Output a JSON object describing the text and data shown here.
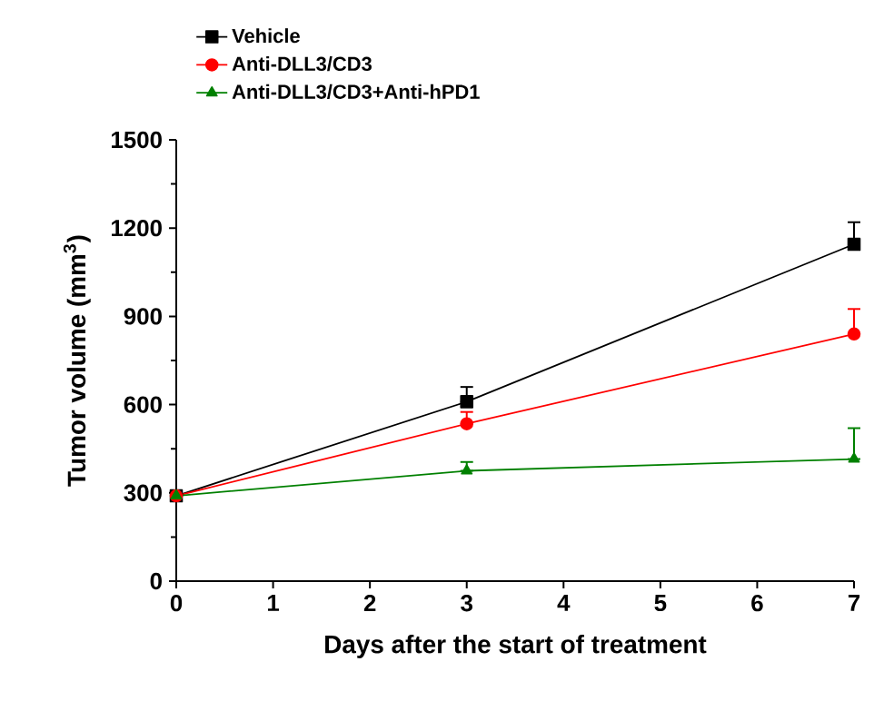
{
  "chart_data": {
    "type": "line",
    "xlabel": "Days after the start of treatment",
    "ylabel": "Tumor volume (mm$^{3}$)",
    "x": [
      0,
      3,
      7
    ],
    "xlim": [
      0,
      7
    ],
    "xticks": [
      0,
      1,
      2,
      3,
      4,
      5,
      6,
      7
    ],
    "ylim": [
      0,
      1500
    ],
    "yticks": [
      0,
      300,
      600,
      900,
      1200,
      1500
    ],
    "legend": "top left",
    "grid": false,
    "series": [
      {
        "name": "Vehicle",
        "color": "#000000",
        "marker": "square",
        "values": [
          290,
          610,
          1145
        ],
        "errors": [
          null,
          [
            610,
            660
          ],
          [
            1145,
            1220
          ]
        ]
      },
      {
        "name": "Anti-DLL3/CD3",
        "color": "#ff0000",
        "marker": "circle",
        "values": [
          290,
          535,
          840
        ],
        "errors": [
          null,
          [
            535,
            575
          ],
          [
            840,
            925
          ]
        ]
      },
      {
        "name": "Anti-DLL3/CD3+Anti-hPD1",
        "color": "#008000",
        "marker": "triangle",
        "values": [
          290,
          375,
          415
        ],
        "errors": [
          null,
          [
            375,
            405
          ],
          [
            415,
            520
          ]
        ]
      }
    ]
  }
}
